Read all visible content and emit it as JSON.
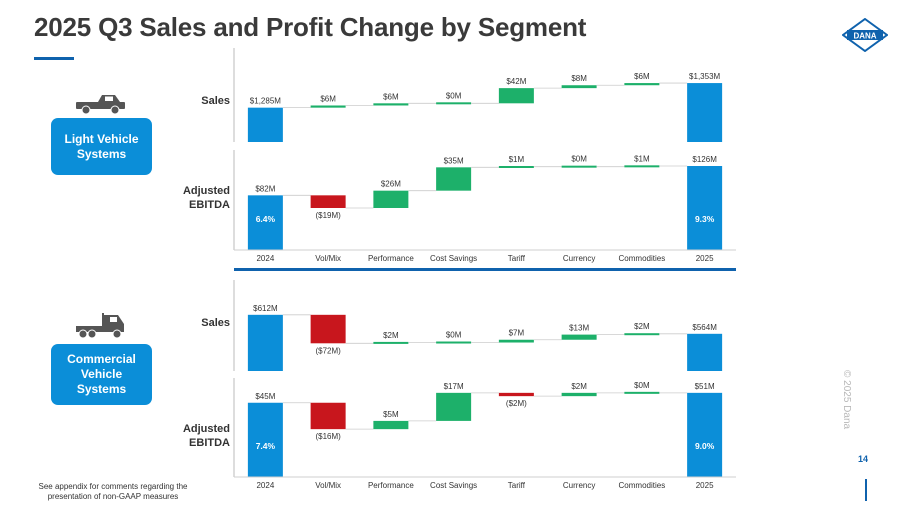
{
  "page": {
    "title": "2025 Q3 Sales and Profit Change by Segment",
    "logo_text": "DANA",
    "copyright": "© 2025 Dana",
    "page_number": "14",
    "footnote": "See appendix for comments regarding the presentation of non-GAAP measures",
    "colors": {
      "up": "#1db06a",
      "down": "#c8161d",
      "total": "#0b8ed8",
      "accent": "#0f62ad"
    }
  },
  "segments": [
    {
      "name": "Light Vehicle Systems",
      "icon": "pickup-truck-icon"
    },
    {
      "name": "Commercial Vehicle Systems",
      "icon": "semi-truck-icon"
    }
  ],
  "row_labels": {
    "sales": "Sales",
    "ebitda": "Adjusted EBITDA"
  },
  "chart_data": {
    "type": "waterfall",
    "categories": [
      "2024",
      "Vol/Mix",
      "Performance",
      "Cost Savings",
      "Tariff",
      "Currency",
      "Commodities",
      "2025"
    ],
    "panels": [
      {
        "segment": "Light Vehicle Systems",
        "metric": "Sales",
        "unit": "$M",
        "values": [
          1285,
          6,
          6,
          0,
          42,
          8,
          6,
          1353
        ],
        "labels": [
          "$1,285M",
          "$6M",
          "$6M",
          "$0M",
          "$42M",
          "$8M",
          "$6M",
          "$1,353M"
        ],
        "margins": null
      },
      {
        "segment": "Light Vehicle Systems",
        "metric": "Adjusted EBITDA",
        "unit": "$M",
        "values": [
          82,
          -19,
          26,
          35,
          1,
          0,
          1,
          126
        ],
        "labels": [
          "$82M",
          "($19M)",
          "$26M",
          "$35M",
          "$1M",
          "$0M",
          "$1M",
          "$126M"
        ],
        "margins": [
          "6.4%",
          "9.3%"
        ]
      },
      {
        "segment": "Commercial Vehicle Systems",
        "metric": "Sales",
        "unit": "$M",
        "values": [
          612,
          -72,
          2,
          0,
          7,
          13,
          2,
          564
        ],
        "labels": [
          "$612M",
          "($72M)",
          "$2M",
          "$0M",
          "$7M",
          "$13M",
          "$2M",
          "$564M"
        ],
        "margins": null
      },
      {
        "segment": "Commercial Vehicle Systems",
        "metric": "Adjusted EBITDA",
        "unit": "$M",
        "values": [
          45,
          -16,
          5,
          17,
          -2,
          2,
          0,
          51
        ],
        "labels": [
          "$45M",
          "($16M)",
          "$5M",
          "$17M",
          "($2M)",
          "$2M",
          "$0M",
          "$51M"
        ],
        "margins": [
          "7.4%",
          "9.0%"
        ]
      }
    ]
  }
}
